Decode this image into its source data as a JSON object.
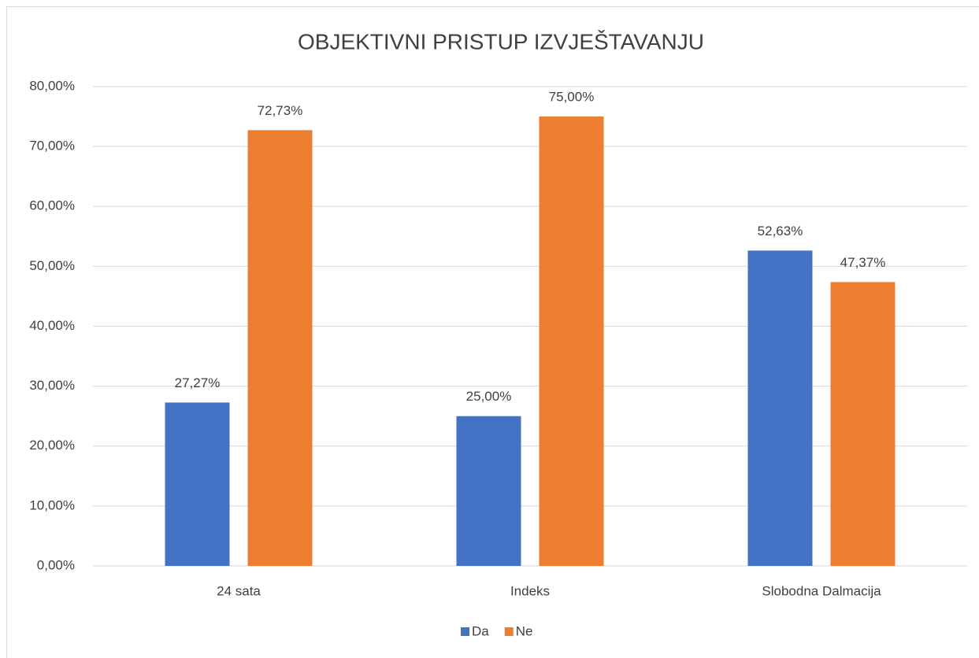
{
  "chart_data": {
    "type": "bar",
    "title": "OBJEKTIVNI PRISTUP IZVJEŠTAVANJU",
    "categories": [
      "24 sata",
      "Indeks",
      "Slobodna Dalmacija"
    ],
    "series": [
      {
        "name": "Da",
        "color": "#4472c4",
        "values": [
          27.27,
          25,
          52.63
        ],
        "value_labels": [
          "27,27%",
          "25,00%",
          "52,63%"
        ]
      },
      {
        "name": "Ne",
        "color": "#ed7d31",
        "values": [
          72.73,
          75,
          47.37
        ],
        "value_labels": [
          "72,73%",
          "75,00%",
          "47,37%"
        ]
      }
    ],
    "ylim": [
      0,
      80
    ],
    "yticks": [
      {
        "value": 0,
        "label": "0,00%"
      },
      {
        "value": 10,
        "label": "10,00%"
      },
      {
        "value": 20,
        "label": "20,00%"
      },
      {
        "value": 30,
        "label": "30,00%"
      },
      {
        "value": 40,
        "label": "40,00%"
      },
      {
        "value": 50,
        "label": "50,00%"
      },
      {
        "value": 60,
        "label": "60,00%"
      },
      {
        "value": 70,
        "label": "70,00%"
      },
      {
        "value": 80,
        "label": "80,00%"
      }
    ],
    "grid": true,
    "legend": "bottom"
  }
}
